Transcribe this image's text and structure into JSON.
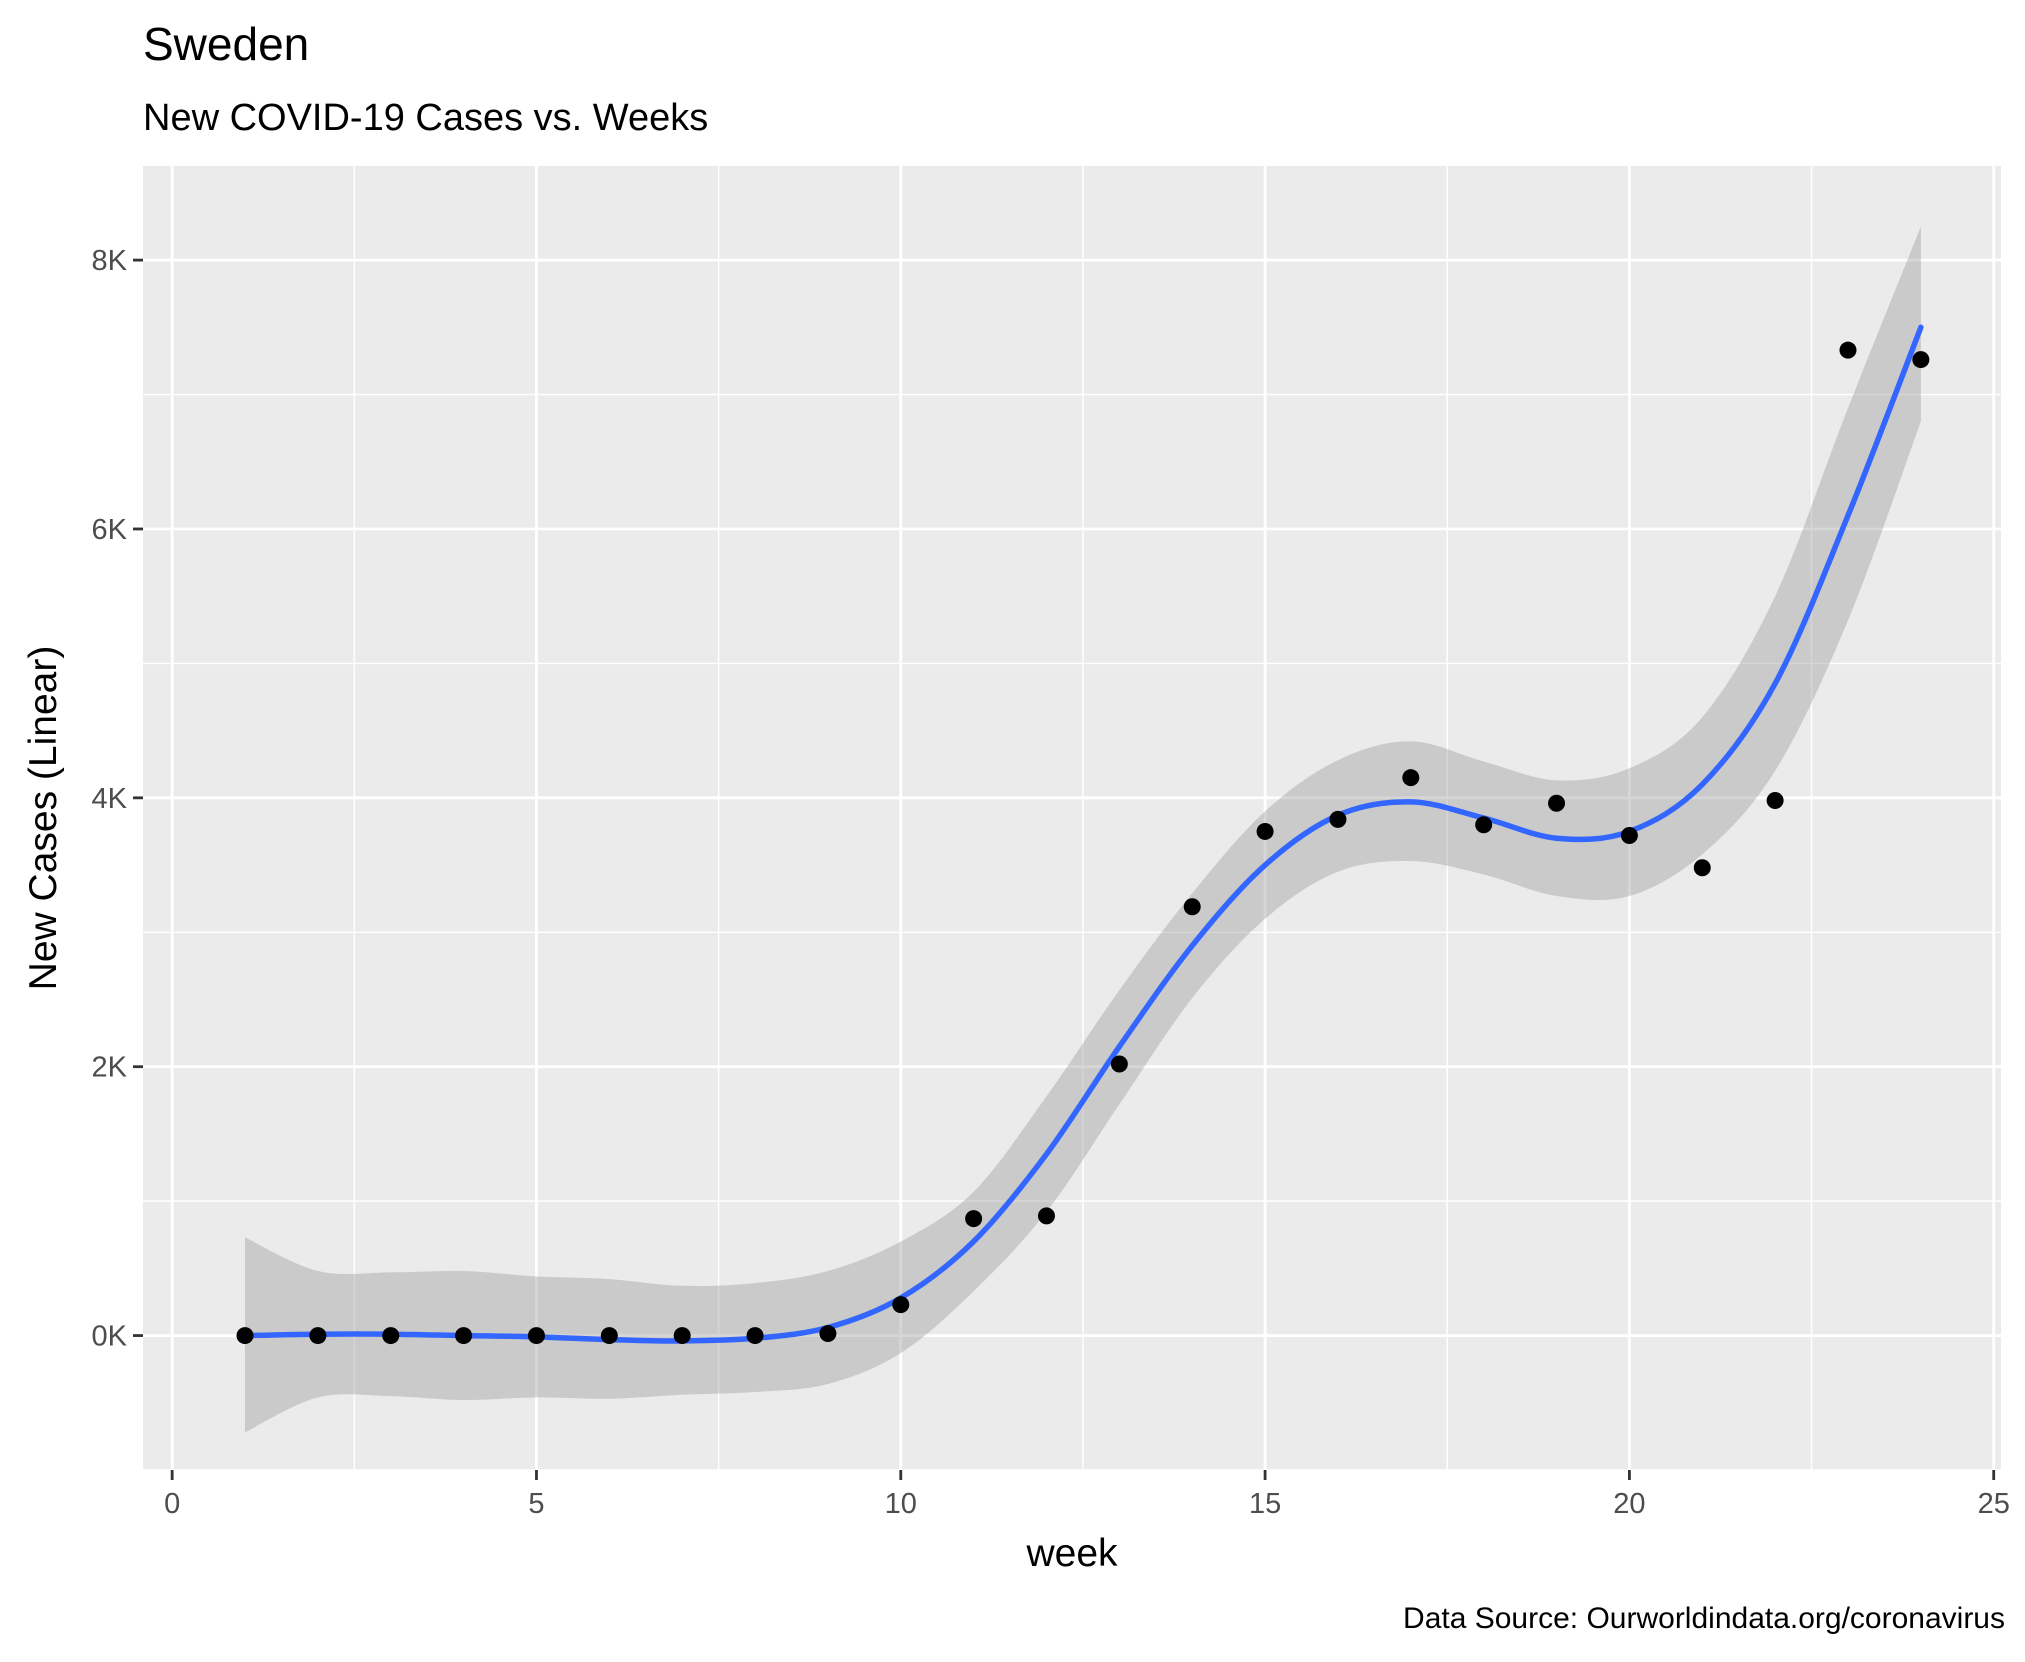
{
  "chart_data": {
    "type": "scatter",
    "title": "Sweden",
    "subtitle": "New COVID-19 Cases vs. Weeks",
    "xlabel": "week",
    "ylabel": "New Cases (Linear)",
    "caption": "Data Source: Ourworldindata.org/coronavirus",
    "xlim": [
      -0.4,
      25.1
    ],
    "ylim": [
      -1000,
      8700
    ],
    "x_ticks": [
      {
        "value": 0,
        "label": "0"
      },
      {
        "value": 5,
        "label": "5"
      },
      {
        "value": 10,
        "label": "10"
      },
      {
        "value": 15,
        "label": "15"
      },
      {
        "value": 20,
        "label": "20"
      },
      {
        "value": 25,
        "label": "25"
      }
    ],
    "y_ticks": [
      {
        "value": 0,
        "label": "0K"
      },
      {
        "value": 2000,
        "label": "2K"
      },
      {
        "value": 4000,
        "label": "4K"
      },
      {
        "value": 6000,
        "label": "6K"
      },
      {
        "value": 8000,
        "label": "8K"
      }
    ],
    "grid": true,
    "series": [
      {
        "type": "scatter",
        "color": "#000000",
        "x": [
          1,
          2,
          3,
          4,
          5,
          6,
          7,
          8,
          9,
          10,
          11,
          12,
          13,
          14,
          15,
          16,
          17,
          18,
          19,
          20,
          21,
          22,
          23,
          24
        ],
        "y": [
          0,
          0,
          0,
          0,
          0,
          0,
          0,
          0,
          15,
          230,
          870,
          890,
          2020,
          3190,
          3750,
          3840,
          4150,
          3800,
          3960,
          3720,
          3480,
          3980,
          7330,
          7260
        ]
      },
      {
        "type": "line",
        "smooth": true,
        "color": "#3366ff",
        "band_color": "#999999",
        "x": [
          1,
          2,
          3,
          4,
          5,
          6,
          7,
          8,
          9,
          10,
          11,
          12,
          13,
          14,
          15,
          16,
          17,
          18,
          19,
          20,
          21,
          22,
          23,
          24
        ],
        "y": [
          0,
          10,
          10,
          0,
          -10,
          -30,
          -40,
          -20,
          60,
          280,
          700,
          1350,
          2150,
          2900,
          3500,
          3870,
          3970,
          3850,
          3700,
          3750,
          4100,
          4850,
          6100,
          7500
        ],
        "lower": [
          -720,
          -460,
          -450,
          -480,
          -460,
          -470,
          -440,
          -420,
          -360,
          -130,
          330,
          920,
          1720,
          2510,
          3100,
          3450,
          3530,
          3430,
          3270,
          3270,
          3580,
          4200,
          5320,
          6800
        ],
        "upper": [
          730,
          480,
          470,
          480,
          440,
          420,
          370,
          390,
          480,
          700,
          1070,
          1780,
          2570,
          3290,
          3900,
          4280,
          4420,
          4270,
          4130,
          4220,
          4600,
          5500,
          6900,
          8250
        ]
      }
    ]
  }
}
